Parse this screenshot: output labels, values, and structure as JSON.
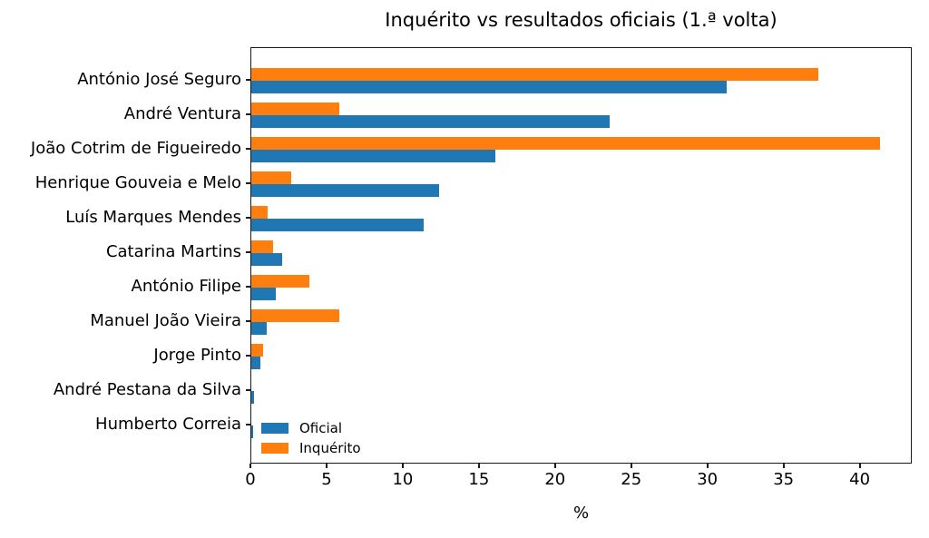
{
  "figure": {
    "background": "#ffffff",
    "text_color": "#000000",
    "spine_color": "#1a1a1a"
  },
  "chart_data": {
    "type": "bar",
    "orientation": "horizontal",
    "title": "Inquérito vs resultados oficiais (1.ª volta)",
    "xlabel": "%",
    "xlim": [
      0,
      43.3
    ],
    "xticks": [
      0,
      5,
      10,
      15,
      20,
      25,
      30,
      35,
      40
    ],
    "grid": false,
    "categories": [
      "António José Seguro",
      "André Ventura",
      "João Cotrim de Figueiredo",
      "Henrique Gouveia e Melo",
      "Luís Marques Mendes",
      "Catarina Martins",
      "António Filipe",
      "Manuel João Vieira",
      "Jorge Pinto",
      "André Pestana da Silva",
      "Humberto Correia"
    ],
    "series": [
      {
        "name": "Oficial",
        "color": "#1f77b4",
        "values": [
          31.2,
          23.5,
          16.0,
          12.3,
          11.3,
          2.0,
          1.6,
          1.0,
          0.6,
          0.2,
          0.1
        ]
      },
      {
        "name": "Inquérito",
        "color": "#ff7f0e",
        "values": [
          37.2,
          5.8,
          41.3,
          2.6,
          1.1,
          1.4,
          3.8,
          5.8,
          0.8,
          0.0,
          0.0
        ]
      }
    ],
    "group_order_top_to_bottom": [
      "Inquérito",
      "Oficial"
    ],
    "legend": {
      "position": "lower left",
      "frame": false,
      "entries": [
        "Oficial",
        "Inquérito"
      ]
    }
  }
}
